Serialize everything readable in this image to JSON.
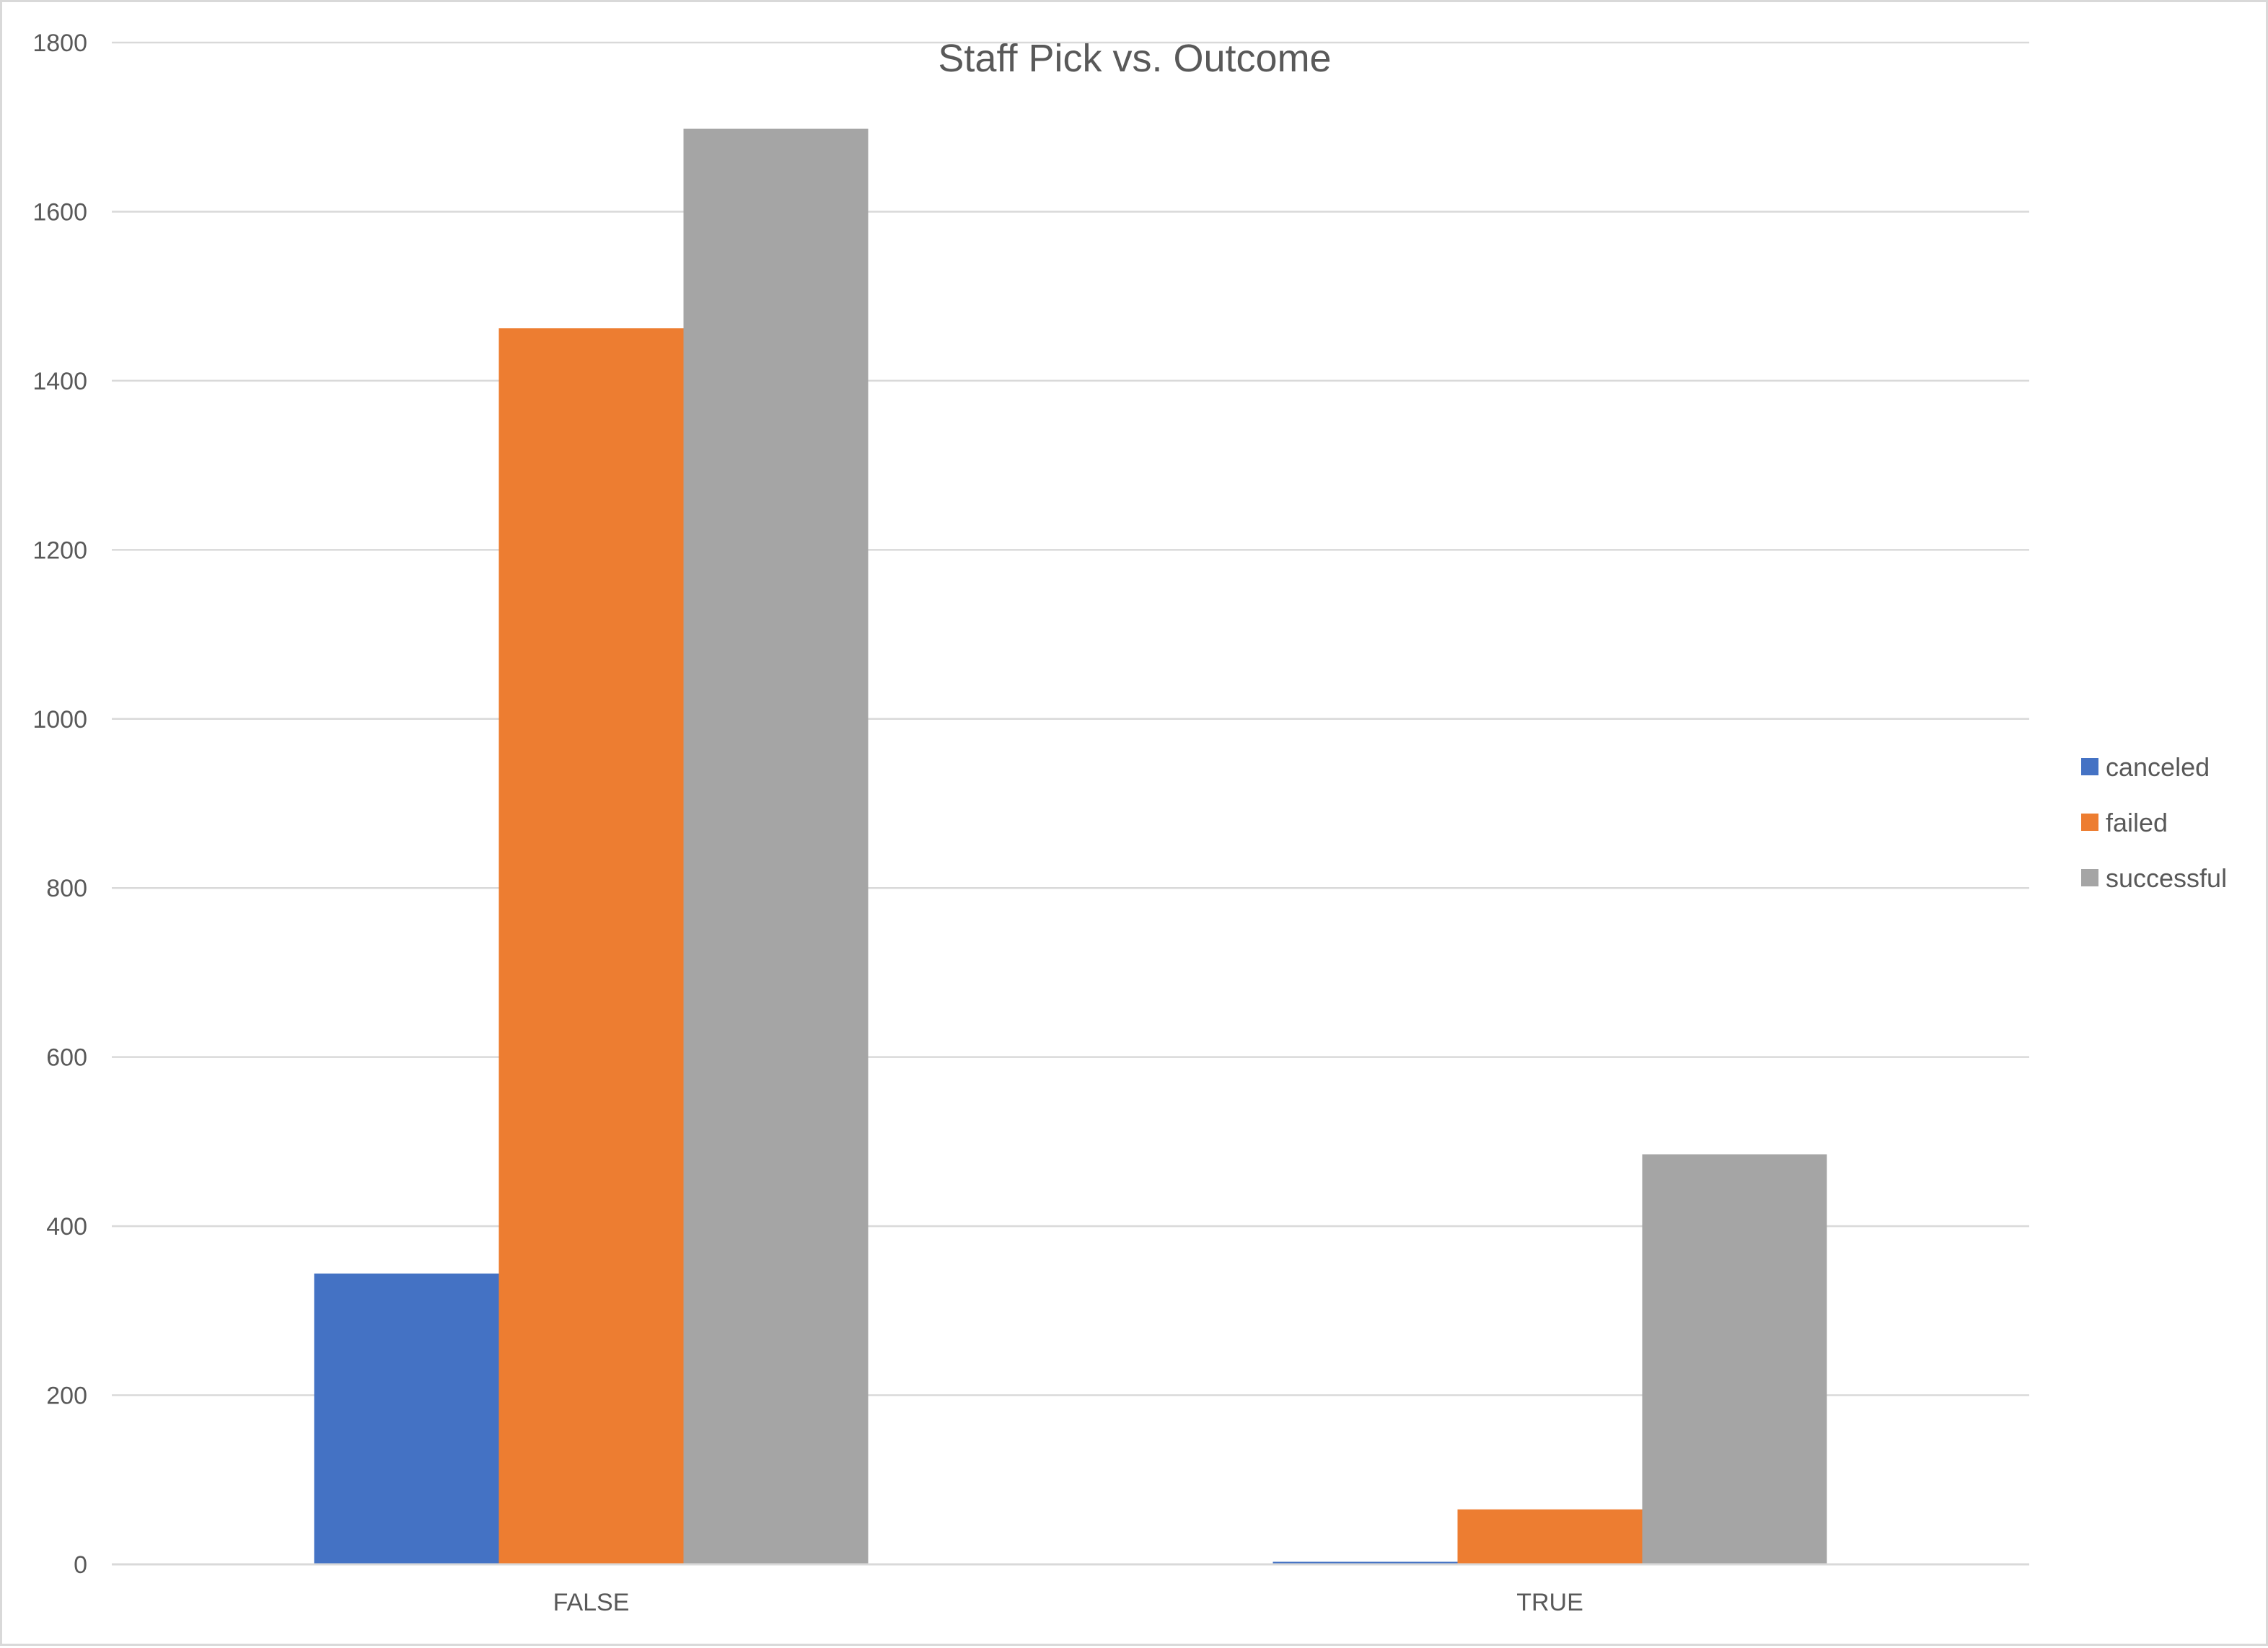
{
  "chart_data": {
    "type": "bar",
    "title": "Staff Pick vs. Outcome",
    "categories": [
      "FALSE",
      "TRUE"
    ],
    "series": [
      {
        "name": "canceled",
        "color": "#4472c4",
        "values": [
          344,
          3
        ]
      },
      {
        "name": "failed",
        "color": "#ed7d31",
        "values": [
          1462,
          65
        ]
      },
      {
        "name": "successful",
        "color": "#a5a5a5",
        "values": [
          1698,
          485
        ]
      }
    ],
    "xlabel": "",
    "ylabel": "",
    "ylim": [
      0,
      1800
    ],
    "yticks": [
      0,
      200,
      400,
      600,
      800,
      1000,
      1200,
      1400,
      1600,
      1800
    ],
    "grid": true,
    "legend_position": "right"
  }
}
